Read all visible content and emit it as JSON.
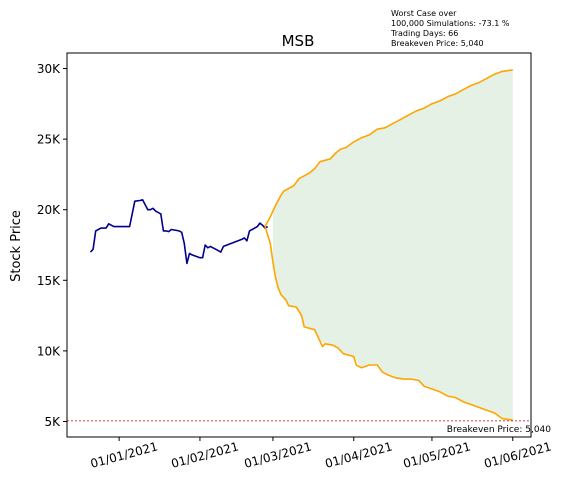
{
  "chart_data": {
    "type": "line",
    "title": "MSB",
    "xlabel": "",
    "ylabel": "Stock Price",
    "x_ticks": [
      "01/01/2021",
      "01/02/2021",
      "01/03/2021",
      "01/04/2021",
      "01/05/2021",
      "01/06/2021"
    ],
    "x_range": [
      "2020-12-12",
      "2021-06-08"
    ],
    "y_ticks": [
      {
        "value": 5000,
        "label": "5K"
      },
      {
        "value": 10000,
        "label": "10K"
      },
      {
        "value": 15000,
        "label": "15K"
      },
      {
        "value": 20000,
        "label": "20K"
      },
      {
        "value": 25000,
        "label": "25K"
      },
      {
        "value": 30000,
        "label": "30K"
      }
    ],
    "ylim": [
      3900,
      31100
    ],
    "grid": false,
    "series": [
      {
        "color": "#00008b",
        "points": [
          [
            "2020-12-21",
            17000
          ],
          [
            "2020-12-22",
            17200
          ],
          [
            "2020-12-23",
            18500
          ],
          [
            "2020-12-24",
            18600
          ],
          [
            "2020-12-25",
            18700
          ],
          [
            "2020-12-27",
            18700
          ],
          [
            "2020-12-28",
            19000
          ],
          [
            "2020-12-29",
            18900
          ],
          [
            "2020-12-30",
            18800
          ],
          [
            "2021-01-01",
            18800
          ],
          [
            "2021-01-04",
            18800
          ],
          [
            "2021-01-05",
            18800
          ],
          [
            "2021-01-07",
            20600
          ],
          [
            "2021-01-09",
            20650
          ],
          [
            "2021-01-10",
            20700
          ],
          [
            "2021-01-12",
            20000
          ],
          [
            "2021-01-13",
            20000
          ],
          [
            "2021-01-14",
            20100
          ],
          [
            "2021-01-15",
            19900
          ],
          [
            "2021-01-17",
            19700
          ],
          [
            "2021-01-18",
            18500
          ],
          [
            "2021-01-19",
            18500
          ],
          [
            "2021-01-20",
            18450
          ],
          [
            "2021-01-21",
            18600
          ],
          [
            "2021-01-24",
            18500
          ],
          [
            "2021-01-25",
            18400
          ],
          [
            "2021-01-26",
            17600
          ],
          [
            "2021-01-27",
            16200
          ],
          [
            "2021-01-28",
            16900
          ],
          [
            "2021-01-29",
            16800
          ],
          [
            "2021-02-01",
            16600
          ],
          [
            "2021-02-02",
            16600
          ],
          [
            "2021-02-03",
            17500
          ],
          [
            "2021-02-04",
            17300
          ],
          [
            "2021-02-05",
            17400
          ],
          [
            "2021-02-08",
            17100
          ],
          [
            "2021-02-09",
            17000
          ],
          [
            "2021-02-10",
            17400
          ],
          [
            "2021-02-17",
            17900
          ],
          [
            "2021-02-18",
            18000
          ],
          [
            "2021-02-19",
            17800
          ],
          [
            "2021-02-20",
            18500
          ],
          [
            "2021-02-22",
            18700
          ],
          [
            "2021-02-23",
            18800
          ],
          [
            "2021-02-24",
            19050
          ],
          [
            "2021-02-25",
            18900
          ],
          [
            "2021-02-26",
            18700
          ],
          [
            "2021-02-27",
            18800
          ]
        ]
      },
      {
        "color": "#ffa500",
        "points": [
          [
            "2021-02-26",
            18800
          ],
          [
            "2021-02-28",
            19500
          ],
          [
            "2021-03-02",
            20300
          ],
          [
            "2021-03-04",
            21000
          ],
          [
            "2021-03-05",
            21300
          ],
          [
            "2021-03-07",
            21500
          ],
          [
            "2021-03-09",
            21700
          ],
          [
            "2021-03-11",
            22200
          ],
          [
            "2021-03-13",
            22400
          ],
          [
            "2021-03-15",
            22600
          ],
          [
            "2021-03-17",
            22900
          ],
          [
            "2021-03-19",
            23400
          ],
          [
            "2021-03-21",
            23500
          ],
          [
            "2021-03-23",
            23600
          ],
          [
            "2021-03-25",
            24000
          ],
          [
            "2021-03-27",
            24300
          ],
          [
            "2021-03-29",
            24400
          ],
          [
            "2021-04-01",
            24800
          ],
          [
            "2021-04-04",
            25100
          ],
          [
            "2021-04-07",
            25300
          ],
          [
            "2021-04-10",
            25700
          ],
          [
            "2021-04-13",
            25800
          ],
          [
            "2021-04-16",
            26100
          ],
          [
            "2021-04-19",
            26400
          ],
          [
            "2021-04-22",
            26700
          ],
          [
            "2021-04-25",
            27000
          ],
          [
            "2021-04-28",
            27200
          ],
          [
            "2021-05-01",
            27500
          ],
          [
            "2021-05-04",
            27700
          ],
          [
            "2021-05-07",
            28000
          ],
          [
            "2021-05-10",
            28200
          ],
          [
            "2021-05-13",
            28500
          ],
          [
            "2021-05-16",
            28800
          ],
          [
            "2021-05-19",
            29000
          ],
          [
            "2021-05-22",
            29300
          ],
          [
            "2021-05-25",
            29600
          ],
          [
            "2021-05-28",
            29800
          ],
          [
            "2021-06-01",
            29900
          ]
        ]
      },
      {
        "color": "#ffa500",
        "points": [
          [
            "2021-02-26",
            18800
          ],
          [
            "2021-02-28",
            17600
          ],
          [
            "2021-03-01",
            16300
          ],
          [
            "2021-03-02",
            15200
          ],
          [
            "2021-03-03",
            14500
          ],
          [
            "2021-03-04",
            14000
          ],
          [
            "2021-03-06",
            13600
          ],
          [
            "2021-03-07",
            13200
          ],
          [
            "2021-03-10",
            13100
          ],
          [
            "2021-03-12",
            12500
          ],
          [
            "2021-03-13",
            11700
          ],
          [
            "2021-03-17",
            11500
          ],
          [
            "2021-03-19",
            10700
          ],
          [
            "2021-03-20",
            10300
          ],
          [
            "2021-03-21",
            10500
          ],
          [
            "2021-03-24",
            10400
          ],
          [
            "2021-03-26",
            10200
          ],
          [
            "2021-03-28",
            9800
          ],
          [
            "2021-03-30",
            9700
          ],
          [
            "2021-04-01",
            9600
          ],
          [
            "2021-04-02",
            9000
          ],
          [
            "2021-04-04",
            8800
          ],
          [
            "2021-04-07",
            9000
          ],
          [
            "2021-04-10",
            9000
          ],
          [
            "2021-04-12",
            8500
          ],
          [
            "2021-04-14",
            8300
          ],
          [
            "2021-04-17",
            8100
          ],
          [
            "2021-04-20",
            8000
          ],
          [
            "2021-04-23",
            8000
          ],
          [
            "2021-04-26",
            7900
          ],
          [
            "2021-04-28",
            7500
          ],
          [
            "2021-05-01",
            7300
          ],
          [
            "2021-05-04",
            7100
          ],
          [
            "2021-05-07",
            6800
          ],
          [
            "2021-05-10",
            6700
          ],
          [
            "2021-05-13",
            6400
          ],
          [
            "2021-05-16",
            6200
          ],
          [
            "2021-05-19",
            6000
          ],
          [
            "2021-05-22",
            5800
          ],
          [
            "2021-05-25",
            5600
          ],
          [
            "2021-05-28",
            5200
          ],
          [
            "2021-06-01",
            5100
          ]
        ]
      }
    ],
    "band": {
      "color": "#e4f1e4",
      "x_start": "2021-03-01",
      "x_end": "2021-06-01",
      "note": "shaded area between upper and lower orange lines"
    },
    "breakeven": {
      "value": 5040,
      "color": "#cc0000",
      "label": "Breakeven Price: 5,040"
    },
    "info_box": [
      "Worst Case over",
      "100,000 Simulations: -73.1 %",
      "Trading Days: 66",
      "Breakeven Price: 5,040"
    ]
  }
}
